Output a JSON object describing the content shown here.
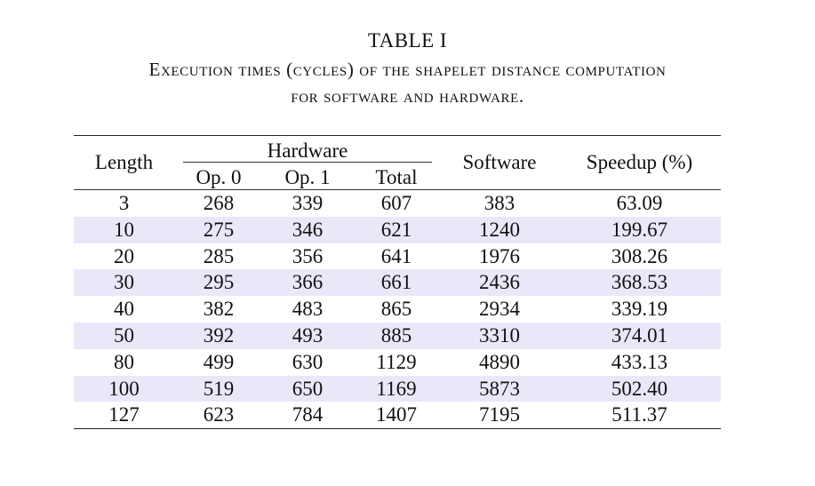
{
  "caption": {
    "label": "TABLE I",
    "line1": "Execution times (cycles) of the shapelet distance computation",
    "line2": "for software and hardware."
  },
  "table": {
    "headers": {
      "length": "Length",
      "hardware": "Hardware",
      "op0": "Op. 0",
      "op1": "Op. 1",
      "total": "Total",
      "software": "Software",
      "speedup": "Speedup (%)"
    },
    "rows": [
      [
        "3",
        "268",
        "339",
        "607",
        "383",
        "63.09"
      ],
      [
        "10",
        "275",
        "346",
        "621",
        "1240",
        "199.67"
      ],
      [
        "20",
        "285",
        "356",
        "641",
        "1976",
        "308.26"
      ],
      [
        "30",
        "295",
        "366",
        "661",
        "2436",
        "368.53"
      ],
      [
        "40",
        "382",
        "483",
        "865",
        "2934",
        "339.19"
      ],
      [
        "50",
        "392",
        "493",
        "885",
        "3310",
        "374.01"
      ],
      [
        "80",
        "499",
        "630",
        "1129",
        "4890",
        "433.13"
      ],
      [
        "100",
        "519",
        "650",
        "1169",
        "5873",
        "502.40"
      ],
      [
        "127",
        "623",
        "784",
        "1407",
        "7195",
        "511.37"
      ]
    ],
    "shade_color": "#e8e8f9"
  }
}
